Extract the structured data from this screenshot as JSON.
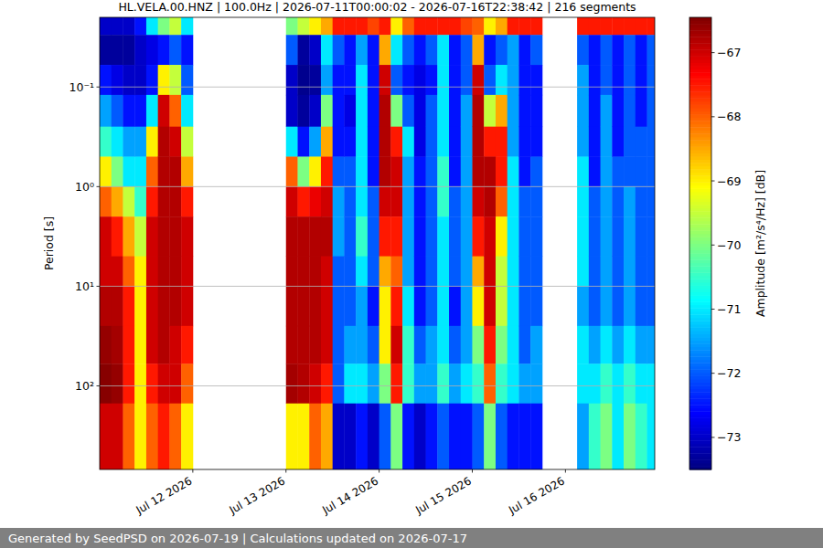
{
  "chart_data": {
    "type": "heatmap",
    "title": "HL.VELA.00.HNZ | 100.0Hz | 2026-07-11T00:00:02 - 2026-07-16T22:38:42 | 216 segments",
    "y_label": "Period [s]",
    "log": "y",
    "grid": "y",
    "xlim": [
      "2026-07-11T00:00",
      "2026-07-16T23:00"
    ],
    "xticks": [
      {
        "value": "2026-07-12T00:00",
        "label": "Jul 12 2026"
      },
      {
        "value": "2026-07-13T00:00",
        "label": "Jul 13 2026"
      },
      {
        "value": "2026-07-14T00:00",
        "label": "Jul 14 2026"
      },
      {
        "value": "2026-07-15T00:00",
        "label": "Jul 15 2026"
      },
      {
        "value": "2026-07-16T00:00",
        "label": "Jul 16 2026"
      }
    ],
    "ylim": [
      690,
      0.02
    ],
    "yticks": [
      {
        "value": 0.1,
        "label": "10⁻¹"
      },
      {
        "value": 1,
        "label": "10⁰"
      },
      {
        "value": 10,
        "label": "10¹"
      },
      {
        "value": 100,
        "label": "10²"
      }
    ],
    "x_bins": [
      "2026-07-11T00:00",
      "2026-07-11T03:00",
      "2026-07-11T06:00",
      "2026-07-11T09:00",
      "2026-07-11T12:00",
      "2026-07-11T15:00",
      "2026-07-11T18:00",
      "2026-07-11T21:00",
      "2026-07-12T00:00",
      "2026-07-12T03:00",
      "2026-07-12T06:00",
      "2026-07-12T09:00",
      "2026-07-12T12:00",
      "2026-07-12T15:00",
      "2026-07-12T18:00",
      "2026-07-12T21:00",
      "2026-07-13T00:00",
      "2026-07-13T03:00",
      "2026-07-13T06:00",
      "2026-07-13T09:00",
      "2026-07-13T12:00",
      "2026-07-13T15:00",
      "2026-07-13T18:00",
      "2026-07-13T21:00",
      "2026-07-14T00:00",
      "2026-07-14T03:00",
      "2026-07-14T06:00",
      "2026-07-14T09:00",
      "2026-07-14T12:00",
      "2026-07-14T15:00",
      "2026-07-14T18:00",
      "2026-07-14T21:00",
      "2026-07-15T00:00",
      "2026-07-15T03:00",
      "2026-07-15T06:00",
      "2026-07-15T09:00",
      "2026-07-15T12:00",
      "2026-07-15T15:00",
      "2026-07-15T18:00",
      "2026-07-15T21:00",
      "2026-07-16T00:00",
      "2026-07-16T03:00",
      "2026-07-16T06:00",
      "2026-07-16T09:00",
      "2026-07-16T12:00",
      "2026-07-16T15:00",
      "2026-07-16T18:00",
      "2026-07-16T21:00",
      "2026-07-17T00:00"
    ],
    "y_bins": [
      0.02,
      0.03,
      0.06,
      0.12,
      0.25,
      0.5,
      1,
      2,
      5,
      10,
      25,
      60,
      150,
      690
    ],
    "cells": [
      [
        -73,
        -73.3,
        -72.5,
        -71.5,
        -70.5,
        -69,
        -68,
        -67,
        -67,
        -66.8,
        -66.6,
        -66.5,
        -67
      ],
      [
        -73,
        -73.3,
        -72.8,
        -72,
        -71,
        -70,
        -68.5,
        -67.5,
        -67,
        -66.8,
        -66.7,
        -66.6,
        -67
      ],
      [
        -73,
        -73.3,
        -73,
        -72.5,
        -71.5,
        -71,
        -69.5,
        -68.5,
        -68,
        -67.5,
        -67.5,
        -67.5,
        -68
      ],
      [
        -72.5,
        -73,
        -73,
        -72.5,
        -71.5,
        -71,
        -70.5,
        -69.5,
        -69,
        -69,
        -69,
        -69,
        -69
      ],
      [
        -71,
        -72.8,
        -72.5,
        -71,
        -69,
        -68,
        -67.5,
        -67,
        -67,
        -67,
        -67,
        -67.5,
        -68
      ],
      [
        -70,
        -72.5,
        -69,
        -67,
        -66.8,
        -66.8,
        -66.8,
        -66.8,
        -66.8,
        -66.8,
        -66.8,
        -67,
        -67.5
      ],
      [
        -69.5,
        -72,
        -69.5,
        -68,
        -67,
        -66.8,
        -66.8,
        -66.8,
        -66.8,
        -66.8,
        -67,
        -67,
        -68
      ],
      [
        -71,
        -72.5,
        -72,
        -71,
        -69.5,
        -68.5,
        -67.5,
        -67,
        -67,
        -67,
        -67.5,
        -68,
        -69
      ],
      null,
      null,
      null,
      null,
      null,
      null,
      null,
      null,
      [
        -70,
        -72,
        -73,
        -73,
        -71,
        -68,
        -67,
        -66.8,
        -66.8,
        -66.8,
        -66.8,
        -66.7,
        -69
      ],
      [
        -69.5,
        -73.3,
        -73.4,
        -73.3,
        -72.5,
        -70,
        -67.5,
        -66.8,
        -66.8,
        -66.8,
        -66.8,
        -66.8,
        -69
      ],
      [
        -69,
        -73,
        -73.3,
        -73,
        -71.5,
        -69,
        -67.2,
        -66.8,
        -66.8,
        -66.8,
        -66.8,
        -67,
        -68
      ],
      [
        -68.5,
        -71,
        -71.5,
        -70,
        -68.5,
        -67.5,
        -67,
        -66.8,
        -67,
        -67,
        -67,
        -67.5,
        -68.5
      ],
      [
        -67.5,
        -72,
        -72.5,
        -72.5,
        -72.5,
        -72,
        -71.5,
        -71.5,
        -72,
        -72,
        -72,
        -72,
        -73
      ],
      [
        -67.5,
        -72.5,
        -72.5,
        -72.8,
        -72.5,
        -72,
        -72,
        -72,
        -72,
        -72,
        -71.5,
        -71,
        -73
      ],
      [
        -67.5,
        -71.5,
        -71,
        -71,
        -71,
        -71,
        -71,
        -70.5,
        -71,
        -71.5,
        -71.5,
        -71,
        -72.5
      ],
      [
        -67.8,
        -72.5,
        -72.5,
        -72.5,
        -72.5,
        -72.5,
        -72,
        -72,
        -72,
        -72.5,
        -72,
        -71.5,
        -73
      ],
      [
        -67.5,
        -68.5,
        -67,
        -66.8,
        -66.8,
        -66.8,
        -67,
        -67.5,
        -68.5,
        -69,
        -69,
        -70,
        -72
      ],
      [
        -69,
        -71,
        -72,
        -70,
        -67.5,
        -67,
        -67,
        -67.5,
        -68,
        -67.5,
        -67,
        -67.5,
        -70
      ],
      [
        -68,
        -72,
        -72.5,
        -72,
        -71,
        -71.5,
        -71.5,
        -71.5,
        -71.5,
        -71,
        -70.5,
        -70.5,
        -72.5
      ],
      [
        -67.5,
        -72.5,
        -72.8,
        -72.8,
        -72.8,
        -72.5,
        -72.5,
        -72.5,
        -72.5,
        -72.5,
        -72,
        -71.5,
        -73
      ],
      [
        -67.5,
        -72,
        -72.5,
        -72,
        -72,
        -72,
        -72,
        -72,
        -72,
        -72,
        -71.5,
        -71.5,
        -72.5
      ],
      [
        -67.5,
        -71,
        -71,
        -71,
        -71,
        -70.5,
        -70.5,
        -71,
        -71,
        -71,
        -71,
        -70.5,
        -72
      ],
      [
        -67.5,
        -72.5,
        -72.5,
        -72.5,
        -72.5,
        -72.5,
        -72,
        -72,
        -72,
        -72.5,
        -72,
        -71.5,
        -72.5
      ],
      [
        -67.8,
        -72,
        -72,
        -71.5,
        -71.5,
        -71.5,
        -71.5,
        -71.5,
        -71.5,
        -71.5,
        -71.5,
        -71,
        -72.5
      ],
      [
        -68,
        -68.5,
        -67,
        -66.8,
        -66.8,
        -66.8,
        -67,
        -67.5,
        -68.5,
        -69,
        -70,
        -70.5,
        -72
      ],
      [
        -69,
        -72.5,
        -72,
        -69.5,
        -67.5,
        -66.8,
        -66.8,
        -67,
        -67,
        -67,
        -67.5,
        -68,
        -70
      ],
      [
        -68.5,
        -72,
        -71,
        -68.5,
        -67.5,
        -67.5,
        -68,
        -69,
        -69.5,
        -69.5,
        -70,
        -70.5,
        -72
      ],
      [
        -67.5,
        -71.5,
        -71.5,
        -71.5,
        -71.5,
        -71,
        -71,
        -71,
        -71,
        -71,
        -71,
        -71,
        -72.5
      ],
      [
        -67.5,
        -72.5,
        -72.5,
        -72.5,
        -72.5,
        -72.5,
        -72,
        -72,
        -72,
        -72,
        -72,
        -71.5,
        -72.5
      ],
      [
        -67.5,
        -72,
        -72.5,
        -72.5,
        -72.5,
        -72,
        -72,
        -72,
        -72,
        -72,
        -71.5,
        -71.5,
        -72.5
      ],
      null,
      null,
      null,
      [
        -67.5,
        -72,
        -71.5,
        -71.5,
        -71.5,
        -71,
        -71,
        -71,
        -71,
        -71.5,
        -71,
        -71,
        -71.5
      ],
      [
        -67.5,
        -72.5,
        -72.5,
        -72.5,
        -72.5,
        -72.5,
        -72,
        -72,
        -72,
        -72,
        -71.5,
        -71,
        -70.5
      ],
      [
        -67.5,
        -72,
        -72,
        -71.5,
        -71.5,
        -71.5,
        -71.5,
        -71.5,
        -71.5,
        -71.5,
        -71,
        -70.5,
        -70
      ],
      [
        -67.5,
        -72.5,
        -72.5,
        -72.5,
        -72.5,
        -72,
        -72,
        -72,
        -72,
        -72,
        -71.5,
        -71,
        -71
      ],
      [
        -67.5,
        -72,
        -72,
        -72,
        -72,
        -72,
        -71.5,
        -71.5,
        -71.5,
        -71.5,
        -71,
        -70.5,
        -70
      ],
      [
        -67.5,
        -72.5,
        -72.5,
        -72.5,
        -72,
        -72,
        -72,
        -72,
        -72,
        -72,
        -71.5,
        -71,
        -70.5
      ],
      [
        -67.5,
        -72,
        -72,
        -72,
        -72,
        -72,
        -72,
        -72,
        -72,
        -72,
        -71.5,
        -71,
        -71
      ]
    ],
    "colorbar": {
      "label": "Amplitude [m²/s⁴/Hz] [dB]",
      "lim": [
        -73.5,
        -66.45
      ],
      "ticks": [
        {
          "value": -73,
          "label": "−73"
        },
        {
          "value": -72,
          "label": "−72"
        },
        {
          "value": -71,
          "label": "−71"
        },
        {
          "value": -70,
          "label": "−70"
        },
        {
          "value": -69,
          "label": "−69"
        },
        {
          "value": -68,
          "label": "−68"
        },
        {
          "value": -67,
          "label": "−67"
        }
      ]
    }
  },
  "footer": "Generated by SeedPSD on 2026-07-19 | Calculations updated on 2026-07-17"
}
